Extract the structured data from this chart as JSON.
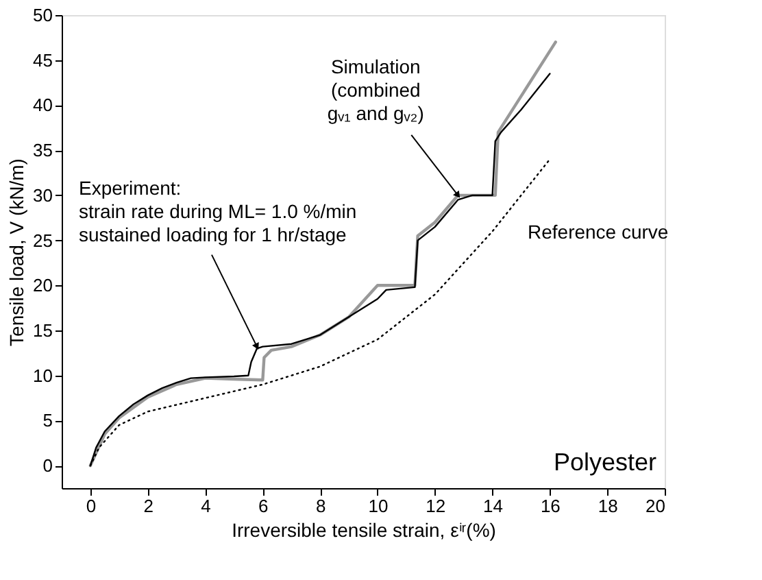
{
  "chart_data": {
    "type": "line",
    "xlabel": "Irreversible tensile strain, εⁱʳ(%)",
    "ylabel": "Tensile load, V (kN/m)",
    "xlim": [
      -1,
      20
    ],
    "xticks": [
      0,
      2,
      4,
      6,
      8,
      10,
      12,
      14,
      16,
      18,
      20
    ],
    "ylim": [
      -2.5,
      50
    ],
    "yticks": [
      0,
      5,
      10,
      15,
      20,
      25,
      30,
      35,
      40,
      45,
      50
    ],
    "grid": false,
    "legend": false,
    "marker": "none",
    "series": [
      {
        "color": "#999999",
        "line_style": "solid",
        "x": [
          0,
          0.5,
          1,
          2,
          3,
          4,
          5,
          6,
          6.05,
          6.3,
          7,
          8,
          9,
          10,
          11.3,
          11.4,
          12,
          12.8,
          14.1,
          14.2,
          16.2
        ],
        "values": [
          0,
          3.5,
          5.3,
          7.6,
          9,
          9.7,
          9.6,
          9.5,
          12,
          12.8,
          13.2,
          14.5,
          16.5,
          20,
          20,
          25.5,
          27,
          30,
          30,
          37,
          47
        ]
      },
      {
        "color": "#000000",
        "line_style": "solid",
        "x": [
          0,
          0.2,
          0.5,
          1,
          1.5,
          2,
          2.5,
          3,
          3.5,
          4,
          5,
          5.5,
          5.6,
          5.8,
          6,
          7,
          8,
          9,
          10,
          10.3,
          11.3,
          11.4,
          12,
          12.8,
          13.3,
          14,
          14.1,
          14.3,
          15,
          16
        ],
        "values": [
          0,
          2,
          3.8,
          5.5,
          6.8,
          7.8,
          8.6,
          9.2,
          9.7,
          9.8,
          9.9,
          10,
          11.5,
          13,
          13.2,
          13.5,
          14.5,
          16.5,
          18.5,
          19.5,
          19.8,
          25,
          26.5,
          29.5,
          30,
          30,
          36,
          37,
          39.5,
          43.5
        ]
      },
      {
        "color": "#000000",
        "line_style": "dotted",
        "x": [
          0,
          0.3,
          1,
          2,
          4,
          6,
          8,
          10,
          12,
          14,
          16
        ],
        "values": [
          0,
          2,
          4.5,
          6,
          7.5,
          9,
          11,
          14,
          19,
          26,
          34
        ]
      }
    ],
    "annotations": [
      {
        "text": "Experiment:\nstrain rate during ML= 1.0 %/min\nsustained loading for 1 hr/stage",
        "x": 5.8,
        "y": 13.2
      },
      {
        "text": "Simulation\n(combined\ngᵥ₁ and gᵥ₂)",
        "x": 12.8,
        "y": 30
      },
      "Reference curve",
      "Polyester"
    ]
  }
}
